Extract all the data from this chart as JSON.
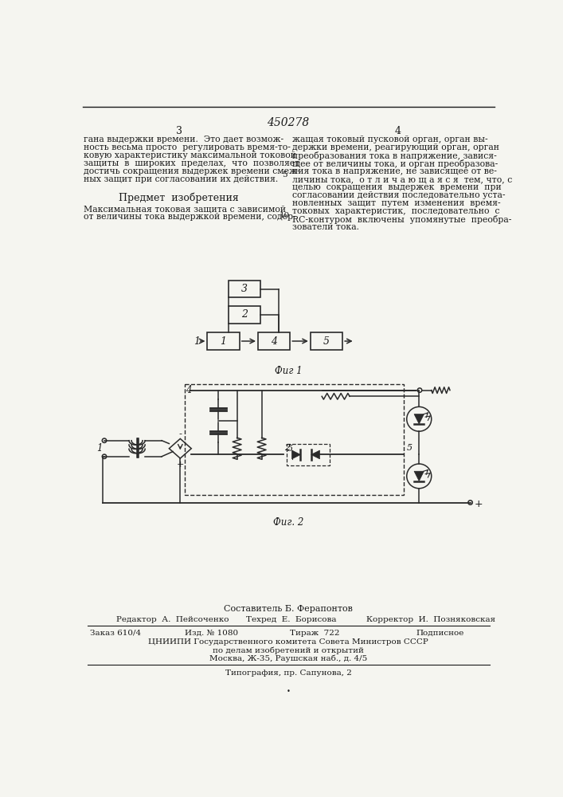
{
  "patent_number": "450278",
  "page_numbers": [
    "3",
    "4"
  ],
  "col1_text_top": "гана выдержки времени.  Это дает возмож-\nность весьма просто  регулировать время-то-\nковую характеристику максимальной токовой\nзащиты  в  широких  пределах,  что  позволяет\nдостичь сокращения выдержек времени смеж-\nных защит при согласовании их действия.",
  "col1_subject_header": "Предмет  изобретения",
  "col1_subject_text": "Максимальная токовая защита с зависимой\nот величины тока выдержкой времени, содер-",
  "col2_text_top": "жащая токовый пусковой орган, орган вы-\nдержки времени, реагирующий орган, орган\nпреобразования тока в напряжение, завися-\nщее от величины тока, и орган преобразова-\nния тока в напряжение, не зависящее от ве-\nличины тока,  о т л и ч а ю щ а я с я  тем, что, с\nцелью  сокращения  выдержек  времени  при\nсогласовании действия последовательно уста-\nновленных  защит  путем  изменения  время-\nтоковых  характеристик,  последовательно  с\nRC-контуром  включены  упомянутые  преобра-\nзователи тока.",
  "fig1_caption": "Фиг 1",
  "fig2_caption": "Фиг. 2",
  "line_number": "5",
  "line_number_10": "10",
  "footer_composer": "Составитель Б. Ферапонтов",
  "footer_editor": "Редактор  А.  Пейсоченко",
  "footer_tech": "Техред  Е.  Борисова",
  "footer_corrector": "Корректор  И.  Позняковская",
  "footer_order": "Заказ 610/4",
  "footer_edition": "Изд. № 1080",
  "footer_circulation": "Тираж  722",
  "footer_subscription": "Подписное",
  "footer_cnipi": "ЦНИИПИ Государственного комитета Совета Министров СССР",
  "footer_department": "по делам изобретений и открытий",
  "footer_address": "Москва, Ж-35, Раушская наб., д. 4/5",
  "footer_typography": "Типография, пр. Сапунова, 2",
  "bg_color": "#f5f5f0",
  "text_color": "#1a1a1a",
  "diagram_color": "#2a2a2a"
}
